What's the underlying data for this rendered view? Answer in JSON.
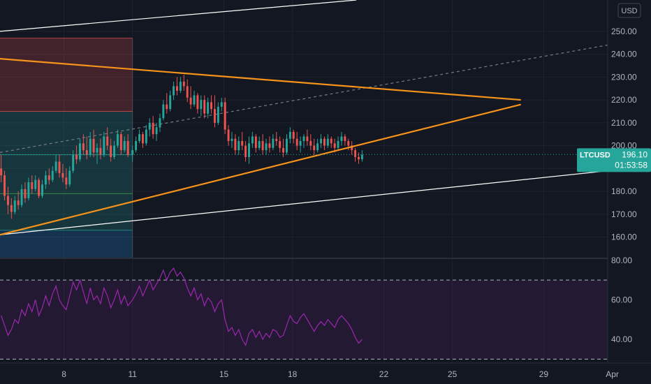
{
  "chart_data": {
    "type": "candlestick",
    "symbol": "LTCUSD",
    "currency": "USD",
    "last_price": "196.10",
    "countdown": "01:53:58",
    "price_axis": {
      "range": [
        150.7,
        263.7
      ],
      "ticks": [
        250,
        240,
        230,
        220,
        210,
        200,
        190,
        180,
        170,
        160
      ],
      "tick_labels": [
        "250.00",
        "240.00",
        "230.00",
        "220.00",
        "210.00",
        "200.00",
        "190.00",
        "180.00",
        "170.00",
        "160.00"
      ]
    },
    "rsi_axis": {
      "range": [
        28,
        81
      ],
      "ticks": [
        80,
        60,
        40
      ],
      "tick_labels": [
        "80.00",
        "60.00",
        "40.00"
      ],
      "bands": [
        70,
        30
      ]
    },
    "time_axis": {
      "range": [
        5.2,
        31.8
      ],
      "tick_values": [
        8,
        11,
        15,
        18,
        22,
        25,
        29,
        32
      ],
      "tick_labels": [
        "8",
        "11",
        "15",
        "18",
        "22",
        "25",
        "29",
        "Apr"
      ]
    },
    "colors": {
      "up": "#26a69a",
      "down": "#ef5350",
      "triangle": "#f7931a",
      "rsi": "#9c27b0",
      "channel": "#ffffff",
      "last_price": "#26a69a"
    },
    "candles": [
      [
        5.25,
        190,
        196,
        184,
        187
      ],
      [
        5.4,
        187,
        189,
        176,
        178
      ],
      [
        5.55,
        178,
        182,
        170,
        174
      ],
      [
        5.7,
        174,
        177,
        168,
        171
      ],
      [
        5.85,
        171,
        178,
        170,
        176
      ],
      [
        6.0,
        176,
        180,
        172,
        174
      ],
      [
        6.15,
        174,
        183,
        173,
        181
      ],
      [
        6.3,
        181,
        184,
        175,
        177
      ],
      [
        6.45,
        177,
        186,
        176,
        184
      ],
      [
        6.6,
        184,
        187,
        179,
        181
      ],
      [
        6.75,
        181,
        187,
        180,
        185
      ],
      [
        6.9,
        185,
        186,
        177,
        178
      ],
      [
        7.05,
        178,
        185,
        177,
        183
      ],
      [
        7.2,
        183,
        189,
        181,
        187
      ],
      [
        7.35,
        187,
        190,
        183,
        185
      ],
      [
        7.5,
        185,
        191,
        184,
        189
      ],
      [
        7.65,
        189,
        196,
        188,
        193
      ],
      [
        7.8,
        193,
        196,
        186,
        188
      ],
      [
        7.95,
        188,
        192,
        184,
        186
      ],
      [
        8.1,
        186,
        190,
        181,
        183
      ],
      [
        8.25,
        183,
        191,
        182,
        189
      ],
      [
        8.4,
        189,
        198,
        188,
        196
      ],
      [
        8.55,
        196,
        200,
        192,
        194
      ],
      [
        8.7,
        194,
        203,
        193,
        201
      ],
      [
        8.85,
        201,
        205,
        196,
        198
      ],
      [
        9.0,
        198,
        204,
        194,
        196
      ],
      [
        9.15,
        196,
        206,
        195,
        203
      ],
      [
        9.3,
        203,
        207,
        195,
        197
      ],
      [
        9.45,
        197,
        201,
        192,
        199
      ],
      [
        9.6,
        199,
        203,
        194,
        196
      ],
      [
        9.75,
        196,
        206,
        195,
        204
      ],
      [
        9.9,
        204,
        208,
        198,
        200
      ],
      [
        10.05,
        200,
        203,
        193,
        195
      ],
      [
        10.2,
        195,
        202,
        194,
        200
      ],
      [
        10.35,
        200,
        207,
        199,
        205
      ],
      [
        10.5,
        205,
        206,
        196,
        198
      ],
      [
        10.65,
        198,
        204,
        197,
        202
      ],
      [
        10.8,
        202,
        205,
        195,
        196
      ],
      [
        11.0,
        196,
        200,
        193,
        198
      ],
      [
        11.15,
        198,
        204,
        197,
        202
      ],
      [
        11.3,
        202,
        207,
        201,
        205
      ],
      [
        11.45,
        205,
        206,
        199,
        201
      ],
      [
        11.6,
        201,
        209,
        200,
        207
      ],
      [
        11.75,
        207,
        212,
        204,
        210
      ],
      [
        11.9,
        210,
        213,
        203,
        205
      ],
      [
        12.05,
        205,
        210,
        202,
        208
      ],
      [
        12.2,
        208,
        214,
        206,
        212
      ],
      [
        12.35,
        212,
        220,
        211,
        218
      ],
      [
        12.5,
        218,
        223,
        214,
        216
      ],
      [
        12.65,
        216,
        224,
        215,
        222
      ],
      [
        12.8,
        222,
        228,
        220,
        226
      ],
      [
        12.95,
        226,
        230,
        222,
        224
      ],
      [
        13.1,
        224,
        230,
        223,
        228
      ],
      [
        13.25,
        228,
        231,
        224,
        226
      ],
      [
        13.4,
        226,
        229,
        219,
        221
      ],
      [
        13.55,
        221,
        226,
        216,
        218
      ],
      [
        13.7,
        218,
        224,
        217,
        222
      ],
      [
        13.85,
        222,
        223,
        214,
        216
      ],
      [
        14.0,
        216,
        222,
        213,
        220
      ],
      [
        14.15,
        220,
        222,
        212,
        214
      ],
      [
        14.3,
        214,
        221,
        212,
        219
      ],
      [
        14.45,
        219,
        222,
        214,
        216
      ],
      [
        14.6,
        216,
        222,
        208,
        210
      ],
      [
        14.75,
        210,
        219,
        209,
        217
      ],
      [
        14.9,
        217,
        221,
        215,
        219
      ],
      [
        15.05,
        219,
        221,
        205,
        207
      ],
      [
        15.2,
        207,
        209,
        200,
        202
      ],
      [
        15.35,
        202,
        206,
        199,
        203
      ],
      [
        15.5,
        203,
        205,
        196,
        198
      ],
      [
        15.65,
        198,
        204,
        196,
        202
      ],
      [
        15.8,
        202,
        206,
        198,
        200
      ],
      [
        15.95,
        200,
        202,
        193,
        195
      ],
      [
        16.1,
        195,
        204,
        192,
        201
      ],
      [
        16.25,
        201,
        206,
        199,
        204
      ],
      [
        16.4,
        204,
        205,
        197,
        199
      ],
      [
        16.55,
        199,
        204,
        198,
        202
      ],
      [
        16.7,
        202,
        205,
        196,
        198
      ],
      [
        16.85,
        198,
        203,
        196,
        201
      ],
      [
        17.0,
        201,
        204,
        197,
        199
      ],
      [
        17.15,
        199,
        205,
        198,
        203
      ],
      [
        17.3,
        203,
        206,
        200,
        202
      ],
      [
        17.45,
        202,
        204,
        197,
        199
      ],
      [
        17.6,
        199,
        203,
        195,
        197
      ],
      [
        17.75,
        197,
        205,
        196,
        203
      ],
      [
        17.9,
        203,
        208,
        201,
        206
      ],
      [
        18.05,
        206,
        207,
        201,
        203
      ],
      [
        18.2,
        203,
        206,
        198,
        200
      ],
      [
        18.35,
        200,
        204,
        197,
        202
      ],
      [
        18.5,
        202,
        205,
        199,
        204
      ],
      [
        18.65,
        204,
        207,
        200,
        202
      ],
      [
        18.8,
        202,
        205,
        198,
        200
      ],
      [
        18.95,
        200,
        203,
        196,
        198
      ],
      [
        19.1,
        198,
        203,
        197,
        201
      ],
      [
        19.25,
        201,
        205,
        199,
        203
      ],
      [
        19.4,
        203,
        204,
        198,
        200
      ],
      [
        19.55,
        200,
        205,
        199,
        203
      ],
      [
        19.7,
        203,
        204,
        199,
        201
      ],
      [
        19.85,
        201,
        203,
        197,
        199
      ],
      [
        20.0,
        199,
        204,
        198,
        202
      ],
      [
        20.15,
        202,
        206,
        200,
        204
      ],
      [
        20.3,
        204,
        205,
        200,
        202
      ],
      [
        20.45,
        202,
        203,
        198,
        200
      ],
      [
        20.6,
        200,
        202,
        196,
        198
      ],
      [
        20.75,
        198,
        199,
        193,
        195
      ],
      [
        20.9,
        195,
        197,
        192,
        194
      ],
      [
        21.05,
        194,
        198,
        193,
        196
      ]
    ],
    "rsi": [
      [
        5.25,
        52
      ],
      [
        5.4,
        47
      ],
      [
        5.55,
        42
      ],
      [
        5.7,
        45
      ],
      [
        5.85,
        50
      ],
      [
        6.0,
        48
      ],
      [
        6.15,
        55
      ],
      [
        6.3,
        52
      ],
      [
        6.45,
        58
      ],
      [
        6.6,
        54
      ],
      [
        6.75,
        60
      ],
      [
        6.9,
        52
      ],
      [
        7.05,
        56
      ],
      [
        7.2,
        62
      ],
      [
        7.35,
        57
      ],
      [
        7.5,
        63
      ],
      [
        7.65,
        67
      ],
      [
        7.8,
        60
      ],
      [
        7.95,
        57
      ],
      [
        8.1,
        55
      ],
      [
        8.25,
        62
      ],
      [
        8.4,
        69
      ],
      [
        8.55,
        65
      ],
      [
        8.7,
        70
      ],
      [
        8.85,
        64
      ],
      [
        9.0,
        58
      ],
      [
        9.15,
        66
      ],
      [
        9.3,
        60
      ],
      [
        9.45,
        62
      ],
      [
        9.6,
        58
      ],
      [
        9.75,
        66
      ],
      [
        9.9,
        62
      ],
      [
        10.05,
        56
      ],
      [
        10.2,
        60
      ],
      [
        10.35,
        65
      ],
      [
        10.5,
        58
      ],
      [
        10.65,
        62
      ],
      [
        10.8,
        57
      ],
      [
        11.0,
        60
      ],
      [
        11.15,
        63
      ],
      [
        11.3,
        67
      ],
      [
        11.45,
        62
      ],
      [
        11.6,
        66
      ],
      [
        11.75,
        70
      ],
      [
        11.9,
        65
      ],
      [
        12.05,
        68
      ],
      [
        12.2,
        71
      ],
      [
        12.35,
        75
      ],
      [
        12.5,
        70
      ],
      [
        12.65,
        74
      ],
      [
        12.8,
        76
      ],
      [
        12.95,
        72
      ],
      [
        13.1,
        74
      ],
      [
        13.25,
        71
      ],
      [
        13.4,
        66
      ],
      [
        13.55,
        62
      ],
      [
        13.7,
        66
      ],
      [
        13.85,
        60
      ],
      [
        14.0,
        63
      ],
      [
        14.15,
        57
      ],
      [
        14.3,
        61
      ],
      [
        14.45,
        59
      ],
      [
        14.6,
        54
      ],
      [
        14.75,
        58
      ],
      [
        14.9,
        60
      ],
      [
        15.05,
        50
      ],
      [
        15.2,
        44
      ],
      [
        15.35,
        46
      ],
      [
        15.5,
        42
      ],
      [
        15.65,
        45
      ],
      [
        15.8,
        40
      ],
      [
        15.95,
        37
      ],
      [
        16.1,
        43
      ],
      [
        16.25,
        45
      ],
      [
        16.4,
        41
      ],
      [
        16.55,
        44
      ],
      [
        16.7,
        40
      ],
      [
        16.85,
        43
      ],
      [
        17.0,
        41
      ],
      [
        17.15,
        45
      ],
      [
        17.3,
        44
      ],
      [
        17.45,
        41
      ],
      [
        17.6,
        42
      ],
      [
        17.75,
        47
      ],
      [
        17.9,
        52
      ],
      [
        18.05,
        49
      ],
      [
        18.2,
        48
      ],
      [
        18.35,
        51
      ],
      [
        18.5,
        53
      ],
      [
        18.65,
        50
      ],
      [
        18.8,
        47
      ],
      [
        18.95,
        44
      ],
      [
        19.1,
        47
      ],
      [
        19.25,
        49
      ],
      [
        19.4,
        47
      ],
      [
        19.55,
        50
      ],
      [
        19.7,
        48
      ],
      [
        19.85,
        46
      ],
      [
        20.0,
        50
      ],
      [
        20.15,
        52
      ],
      [
        20.3,
        50
      ],
      [
        20.45,
        48
      ],
      [
        20.6,
        45
      ],
      [
        20.75,
        41
      ],
      [
        20.9,
        38
      ],
      [
        21.05,
        40
      ]
    ],
    "zones": [
      {
        "x": [
          5.2,
          11.0
        ],
        "y": [
          247,
          215
        ],
        "color": "#ef5350"
      },
      {
        "x": [
          5.2,
          11.0
        ],
        "y": [
          215,
          196
        ],
        "color": "#26a69a"
      },
      {
        "x": [
          5.2,
          11.0
        ],
        "y": [
          196,
          179
        ],
        "color": "#26a69a"
      },
      {
        "x": [
          5.2,
          11.0
        ],
        "y": [
          179,
          163
        ],
        "color": "#26a69a"
      },
      {
        "x": [
          5.2,
          11.0
        ],
        "y": [
          163,
          150.7
        ],
        "color": "#2196f3"
      }
    ],
    "zone_lines": [
      247,
      215,
      196,
      179,
      163
    ],
    "triangle_lines": [
      {
        "from": [
          5.2,
          238
        ],
        "to": [
          28.0,
          220
        ]
      },
      {
        "from": [
          5.2,
          161
        ],
        "to": [
          28.0,
          218
        ]
      }
    ],
    "channel_lines": [
      {
        "from": [
          5.2,
          250
        ],
        "to": [
          20.8,
          263.7
        ],
        "dashed": false
      },
      {
        "from": [
          5.2,
          197
        ],
        "to": [
          31.8,
          244
        ],
        "dashed": true
      },
      {
        "from": [
          5.2,
          161
        ],
        "to": [
          31.8,
          189
        ],
        "dashed": false
      }
    ]
  }
}
